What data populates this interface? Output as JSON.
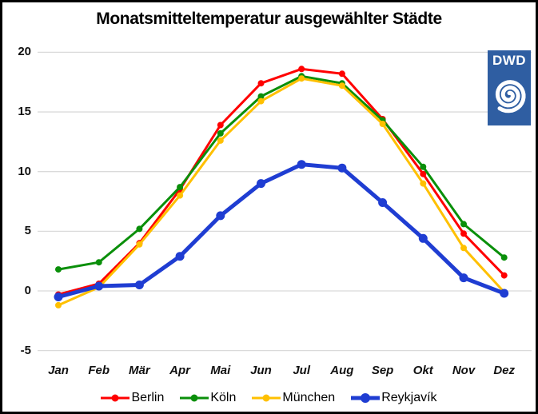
{
  "title": "Monatsmitteltemperatur ausgewählter Städte",
  "logo": {
    "text": "DWD",
    "bg_color": "#2F5EA2",
    "fg_color": "#FFFFFF"
  },
  "chart_data": {
    "type": "line",
    "title": "Monatsmitteltemperatur ausgewählter Städte",
    "categories": [
      "Jan",
      "Feb",
      "Mär",
      "Apr",
      "Mai",
      "Jun",
      "Jul",
      "Aug",
      "Sep",
      "Okt",
      "Nov",
      "Dez"
    ],
    "series": [
      {
        "name": "Berlin",
        "color": "#FF0000",
        "line_width": 3,
        "marker_radius": 4,
        "values": [
          -0.3,
          0.6,
          4.0,
          8.5,
          13.9,
          17.4,
          18.6,
          18.2,
          14.4,
          9.8,
          4.8,
          1.3
        ]
      },
      {
        "name": "Köln",
        "color": "#0A8F0A",
        "line_width": 3,
        "marker_radius": 4,
        "values": [
          1.8,
          2.4,
          5.2,
          8.7,
          13.2,
          16.3,
          18.0,
          17.4,
          14.3,
          10.4,
          5.6,
          2.8
        ]
      },
      {
        "name": "München",
        "color": "#FFC000",
        "line_width": 3,
        "marker_radius": 4,
        "values": [
          -1.2,
          0.3,
          3.9,
          8.0,
          12.6,
          15.9,
          17.8,
          17.2,
          14.0,
          9.0,
          3.6,
          -0.1
        ]
      },
      {
        "name": "Reykjavík",
        "color": "#1F3DD2",
        "line_width": 5,
        "marker_radius": 5.5,
        "values": [
          -0.5,
          0.4,
          0.5,
          2.9,
          6.3,
          9.0,
          10.6,
          10.3,
          7.4,
          4.4,
          1.1,
          -0.2
        ]
      }
    ],
    "xlabel": "",
    "ylabel": "",
    "ylim": [
      -5,
      20
    ],
    "yticks": [
      20,
      15,
      10,
      5,
      0,
      -5
    ],
    "grid": "horizontal",
    "gridline_color": "#DADADA",
    "legend_position": "bottom"
  }
}
